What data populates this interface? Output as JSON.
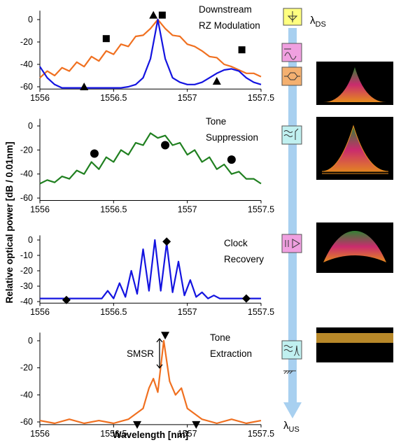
{
  "chart_data": [
    {
      "type": "line",
      "xlim": [
        1556,
        1557.5
      ],
      "ylim": [
        -62,
        8
      ],
      "xticks": [
        1556,
        1556.5,
        1557,
        1557.5
      ],
      "yticks": [
        0,
        -20,
        -40,
        -60
      ],
      "annotation": [
        "Downstream",
        "RZ Modulation"
      ],
      "x": [
        1556.0,
        1556.05,
        1556.1,
        1556.15,
        1556.2,
        1556.25,
        1556.3,
        1556.35,
        1556.4,
        1556.45,
        1556.5,
        1556.55,
        1556.6,
        1556.65,
        1556.7,
        1556.75,
        1556.8,
        1556.85,
        1556.9,
        1556.95,
        1557.0,
        1557.05,
        1557.1,
        1557.15,
        1557.2,
        1557.25,
        1557.3,
        1557.35,
        1557.4,
        1557.45,
        1557.5
      ],
      "series": [
        {
          "color": "#f07020",
          "values": [
            -52,
            -46,
            -50,
            -43,
            -46,
            -38,
            -42,
            -33,
            -37,
            -28,
            -31,
            -22,
            -24,
            -15,
            -14,
            -8,
            0,
            -8,
            -14,
            -15,
            -22,
            -24,
            -28,
            -33,
            -34,
            -40,
            -42,
            -45,
            -48,
            -48,
            -51
          ]
        },
        {
          "color": "#1414e0",
          "values": [
            -42,
            -52,
            -58,
            -61,
            -61,
            -61,
            -61,
            -61,
            -61,
            -61,
            -61,
            -61,
            -60,
            -58,
            -52,
            -35,
            0,
            -35,
            -52,
            -56,
            -58,
            -58,
            -56,
            -52,
            -48,
            -45,
            -44,
            -46,
            -52,
            -56,
            -58
          ]
        }
      ],
      "markers": [
        {
          "shape": "square",
          "x": [
            1556.45,
            1556.83,
            1557.37
          ],
          "values": [
            -17,
            4,
            -27
          ]
        },
        {
          "shape": "triangle-up",
          "x": [
            1556.3,
            1556.77,
            1557.2
          ],
          "values": [
            -60,
            4,
            -55
          ]
        }
      ]
    },
    {
      "type": "line",
      "xlim": [
        1556,
        1557.5
      ],
      "ylim": [
        -62,
        6
      ],
      "xticks": [
        1556,
        1556.5,
        1557,
        1557.5
      ],
      "yticks": [
        0,
        -20,
        -40,
        -60
      ],
      "annotation": [
        "Tone",
        "Suppression"
      ],
      "x": [
        1556.0,
        1556.05,
        1556.1,
        1556.15,
        1556.2,
        1556.25,
        1556.3,
        1556.35,
        1556.4,
        1556.45,
        1556.5,
        1556.55,
        1556.6,
        1556.65,
        1556.7,
        1556.75,
        1556.8,
        1556.85,
        1556.9,
        1556.95,
        1557.0,
        1557.05,
        1557.1,
        1557.15,
        1557.2,
        1557.25,
        1557.3,
        1557.35,
        1557.4,
        1557.45,
        1557.5
      ],
      "series": [
        {
          "color": "#208020",
          "values": [
            -48,
            -45,
            -47,
            -42,
            -44,
            -37,
            -40,
            -30,
            -36,
            -26,
            -30,
            -20,
            -24,
            -14,
            -16,
            -6,
            -10,
            -8,
            -16,
            -14,
            -24,
            -20,
            -30,
            -26,
            -36,
            -32,
            -40,
            -38,
            -44,
            -44,
            -48
          ]
        }
      ],
      "markers": [
        {
          "shape": "circle",
          "x": [
            1556.37,
            1556.85,
            1557.3
          ],
          "values": [
            -23,
            -16,
            -28
          ]
        }
      ]
    },
    {
      "type": "line",
      "xlim": [
        1556,
        1557.5
      ],
      "ylim": [
        -41,
        3
      ],
      "xticks": [
        1556,
        1556.5,
        1557,
        1557.5
      ],
      "yticks": [
        0,
        -10,
        -20,
        -30,
        -40
      ],
      "annotation": [
        "Clock",
        "Recovery"
      ],
      "x": [
        1556.0,
        1556.3,
        1556.42,
        1556.46,
        1556.5,
        1556.54,
        1556.58,
        1556.62,
        1556.66,
        1556.7,
        1556.74,
        1556.78,
        1556.82,
        1556.86,
        1556.9,
        1556.94,
        1556.98,
        1557.02,
        1557.06,
        1557.1,
        1557.14,
        1557.18,
        1557.22,
        1557.5
      ],
      "series": [
        {
          "color": "#1414e0",
          "values": [
            -38,
            -38,
            -38,
            -33,
            -38,
            -28,
            -37,
            -20,
            -35,
            -6,
            -33,
            0,
            -33,
            -2,
            -34,
            -14,
            -36,
            -26,
            -37,
            -34,
            -38,
            -36,
            -38,
            -38
          ]
        }
      ],
      "markers": [
        {
          "shape": "diamond",
          "x": [
            1556.18,
            1556.86,
            1557.4
          ],
          "values": [
            -39,
            -1,
            -38
          ]
        }
      ]
    },
    {
      "type": "line",
      "xlim": [
        1556,
        1557.5
      ],
      "ylim": [
        -62,
        6
      ],
      "xticks": [
        1556,
        1556.5,
        1557,
        1557.5
      ],
      "yticks": [
        0,
        -20,
        -40,
        -60
      ],
      "annotation": [
        "Tone",
        "Extraction"
      ],
      "smsr_label": "SMSR",
      "xlabel": "Wavelength [nm]",
      "x": [
        1556.0,
        1556.1,
        1556.2,
        1556.3,
        1556.4,
        1556.5,
        1556.6,
        1556.7,
        1556.74,
        1556.77,
        1556.8,
        1556.84,
        1556.88,
        1556.92,
        1556.96,
        1557.0,
        1557.1,
        1557.2,
        1557.3,
        1557.4,
        1557.5
      ],
      "series": [
        {
          "color": "#f07020",
          "values": [
            -59,
            -61,
            -58,
            -61,
            -59,
            -61,
            -58,
            -50,
            -35,
            -28,
            -38,
            0,
            -30,
            -40,
            -35,
            -50,
            -58,
            -61,
            -58,
            -61,
            -59
          ]
        }
      ],
      "markers": [
        {
          "shape": "triangle-down",
          "x": [
            1556.66,
            1556.85,
            1557.06
          ],
          "values": [
            -62,
            4,
            -62
          ]
        }
      ]
    }
  ],
  "ylabel": "Relative optical power [dB / 0.01nm]",
  "lambda_ds": {
    "symbol": "λ",
    "sub": "DS"
  },
  "lambda_us": {
    "symbol": "λ",
    "sub": "US"
  }
}
